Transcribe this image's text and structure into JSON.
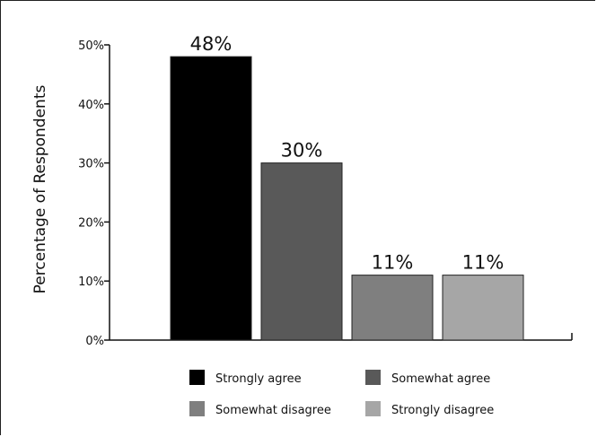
{
  "chart_data": {
    "type": "bar",
    "title": "",
    "xlabel": "",
    "ylabel": "Percentage of Respondents",
    "ylim": [
      0,
      50
    ],
    "yticks": [
      0,
      10,
      20,
      30,
      40,
      50
    ],
    "ytick_labels": [
      "0%",
      "10%",
      "20%",
      "30%",
      "40%",
      "50%"
    ],
    "grid": false,
    "legend_position": "bottom",
    "categories": [
      "Strongly agree",
      "Somewhat agree",
      "Somewhat disagree",
      "Strongly disagree"
    ],
    "values": [
      48,
      30,
      11,
      11
    ],
    "data_labels": [
      "48%",
      "30%",
      "11%",
      "11%"
    ],
    "colors": [
      "#000000",
      "#595959",
      "#7f7f7f",
      "#a6a6a6"
    ]
  }
}
